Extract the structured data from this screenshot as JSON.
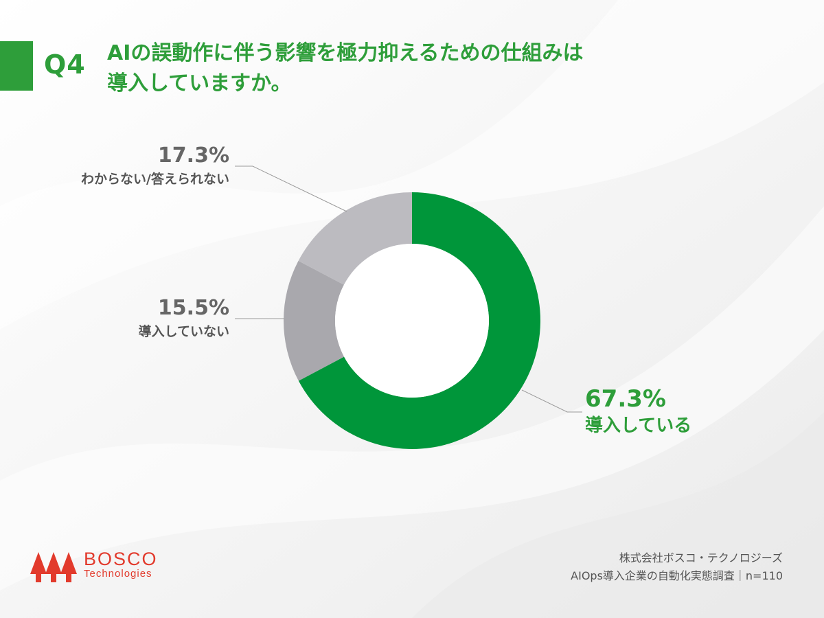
{
  "header": {
    "question_number": "Q4",
    "title_line1": "AIの誤動作に伴う影響を極力抑えるための仕組みは",
    "title_line2": "導入していますか。"
  },
  "colors": {
    "accent": "#2e9e3a",
    "slice_green": "#00963a",
    "slice_gray_mid": "#a9a8ad",
    "slice_gray_light": "#bcbbc0",
    "brand_red": "#e23a2c"
  },
  "chart_data": {
    "type": "pie",
    "style": "donut",
    "title": "AIの誤動作に伴う影響を極力抑えるための仕組みは導入していますか。",
    "slices": [
      {
        "label": "導入している",
        "value": 67.3,
        "display": "67.3%",
        "color": "#00963a"
      },
      {
        "label": "導入していない",
        "value": 15.5,
        "display": "15.5%",
        "color": "#a9a8ad"
      },
      {
        "label": "わからない/答えられない",
        "value": 17.3,
        "display": "17.3%",
        "color": "#bcbbc0"
      }
    ],
    "start_angle": "12 o'clock",
    "direction": "clockwise",
    "legend": "none"
  },
  "footer": {
    "brand_name": "BOSCO",
    "brand_sub": "Technologies",
    "source_line1": "株式会社ボスコ・テクノロジーズ",
    "source_line2": "AIOps導入企業の自動化実態調査｜n=110"
  }
}
